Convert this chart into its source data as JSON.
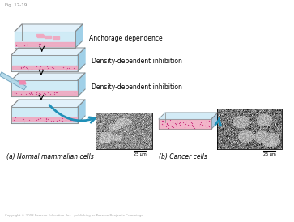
{
  "fig_label": "Fig. 12-19",
  "title_a": "(a) Normal mammalian cells",
  "title_b": "(b) Cancer cells",
  "label1": "Anchorage dependence",
  "label2": "Density-dependent inhibition",
  "label3": "Density-dependent inhibition",
  "scale_bar": "25 μm",
  "copyright": "Copyright © 2008 Pearson Education, Inc., publishing as Pearson Benjamin Cummings",
  "bg_color": "#ffffff",
  "flask_fill": "#c8e8f5",
  "flask_side": "#a0d0e8",
  "flask_top": "#dff0fa",
  "flask_border": "#888888",
  "cell_layer": "#f0a8c0",
  "cell_dot": "#cc4488",
  "needle_color": "#7ec8e3",
  "arrow_color": "#2090b8",
  "text_color": "#000000",
  "fig_label_color": "#888888",
  "copyright_color": "#aaaaaa"
}
